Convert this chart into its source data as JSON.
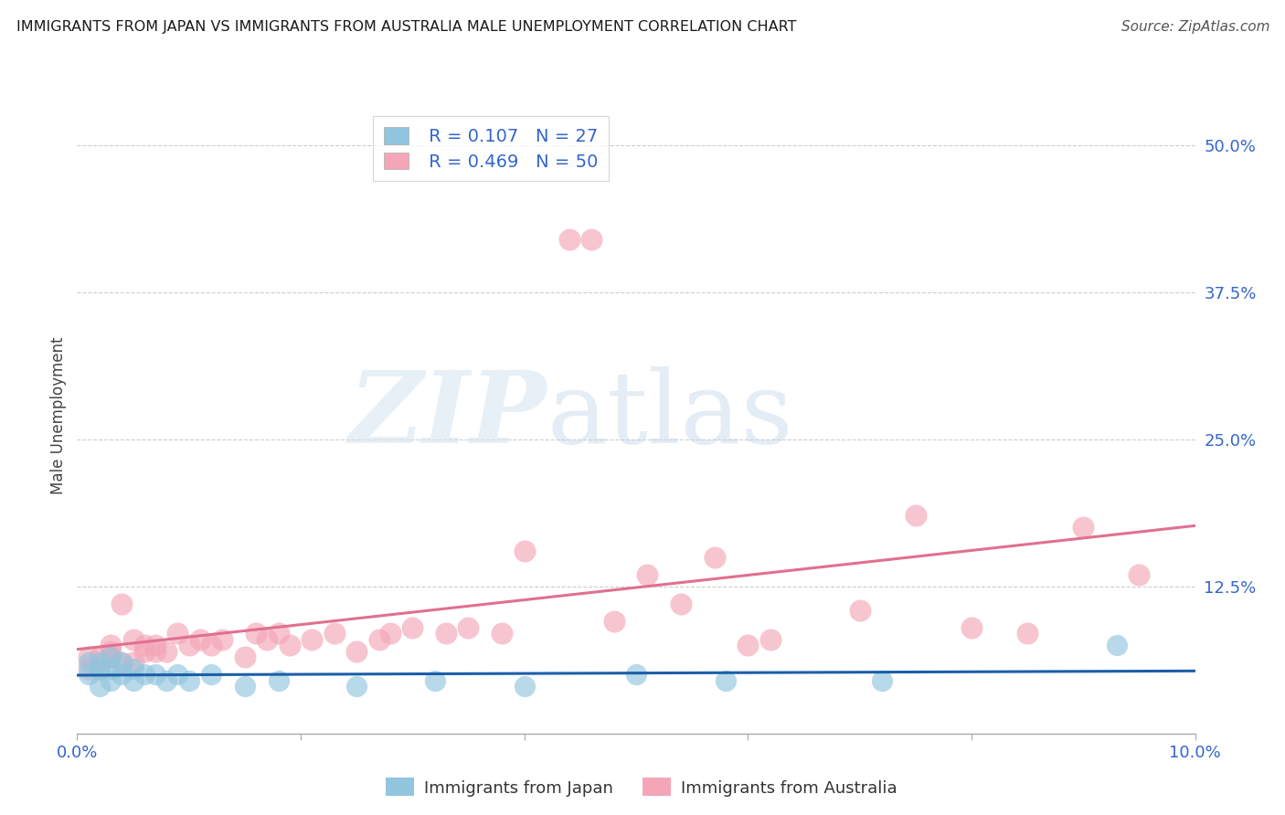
{
  "title": "IMMIGRANTS FROM JAPAN VS IMMIGRANTS FROM AUSTRALIA MALE UNEMPLOYMENT CORRELATION CHART",
  "source": "Source: ZipAtlas.com",
  "ylabel": "Male Unemployment",
  "xlim": [
    0.0,
    0.1
  ],
  "ylim": [
    0.0,
    0.54
  ],
  "yticks": [
    0.0,
    0.125,
    0.25,
    0.375,
    0.5
  ],
  "ytick_labels": [
    "",
    "12.5%",
    "25.0%",
    "37.5%",
    "50.0%"
  ],
  "xticks": [
    0.0,
    0.02,
    0.04,
    0.06,
    0.08,
    0.1
  ],
  "xtick_labels": [
    "0.0%",
    "",
    "",
    "",
    "",
    "10.0%"
  ],
  "japan_color": "#92c5de",
  "australia_color": "#f4a6b8",
  "japan_line_color": "#1a5fa8",
  "australia_line_color": "#e07090",
  "legend_text_color": "#3366cc",
  "background_color": "#ffffff",
  "R_japan": 0.107,
  "N_japan": 27,
  "R_australia": 0.469,
  "N_australia": 50,
  "japan_x": [
    0.001,
    0.001,
    0.002,
    0.002,
    0.002,
    0.003,
    0.003,
    0.003,
    0.004,
    0.004,
    0.005,
    0.005,
    0.006,
    0.007,
    0.008,
    0.009,
    0.01,
    0.012,
    0.015,
    0.018,
    0.025,
    0.032,
    0.04,
    0.05,
    0.058,
    0.072,
    0.093
  ],
  "japan_y": [
    0.05,
    0.06,
    0.04,
    0.055,
    0.06,
    0.045,
    0.055,
    0.065,
    0.05,
    0.06,
    0.045,
    0.055,
    0.05,
    0.05,
    0.045,
    0.05,
    0.045,
    0.05,
    0.04,
    0.045,
    0.04,
    0.045,
    0.04,
    0.05,
    0.045,
    0.045,
    0.075
  ],
  "australia_x": [
    0.001,
    0.001,
    0.002,
    0.002,
    0.003,
    0.003,
    0.003,
    0.004,
    0.004,
    0.005,
    0.005,
    0.006,
    0.006,
    0.007,
    0.007,
    0.008,
    0.009,
    0.01,
    0.011,
    0.012,
    0.013,
    0.015,
    0.016,
    0.017,
    0.018,
    0.019,
    0.021,
    0.023,
    0.025,
    0.027,
    0.028,
    0.03,
    0.033,
    0.035,
    0.038,
    0.04,
    0.044,
    0.046,
    0.048,
    0.051,
    0.054,
    0.057,
    0.06,
    0.062,
    0.07,
    0.075,
    0.08,
    0.085,
    0.09,
    0.095
  ],
  "australia_y": [
    0.055,
    0.065,
    0.055,
    0.065,
    0.07,
    0.065,
    0.075,
    0.06,
    0.11,
    0.06,
    0.08,
    0.07,
    0.075,
    0.07,
    0.075,
    0.07,
    0.085,
    0.075,
    0.08,
    0.075,
    0.08,
    0.065,
    0.085,
    0.08,
    0.085,
    0.075,
    0.08,
    0.085,
    0.07,
    0.08,
    0.085,
    0.09,
    0.085,
    0.09,
    0.085,
    0.155,
    0.42,
    0.42,
    0.095,
    0.135,
    0.11,
    0.15,
    0.075,
    0.08,
    0.105,
    0.185,
    0.09,
    0.085,
    0.175,
    0.135
  ]
}
